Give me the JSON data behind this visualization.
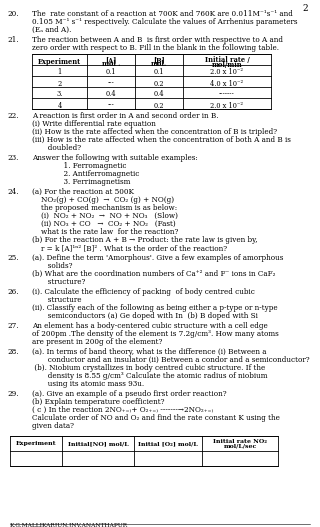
{
  "page_number": "2",
  "bg": "#ffffff",
  "fg": "#000000",
  "footer": "K.G.MALLIKARJUN,JNV,ANANTHAPUR",
  "q20_lines": [
    "The  rate constant of a reaction at 700K and 760K are 0.011M⁻¹s⁻¹ and",
    "0.105 M⁻¹ s⁻¹ respectively. Calculate the values of Arrhenius parameters",
    "(Eₐ and A)."
  ],
  "q21_lines": [
    "The reaction between A and B  is first order with respective to A and",
    "zero order with respect to B. Fill in the blank in the following table."
  ],
  "table21_headers": [
    "Experiment",
    "[A]\nmol .",
    "[B]\nmol.",
    "Initial rate /\nmol/min"
  ],
  "table21_rows": [
    [
      "1",
      "0.1",
      "0.1",
      "2.0 x 10⁻²"
    ],
    [
      "2",
      "---",
      "0.2",
      "4.0 x 10⁻²"
    ],
    [
      "3.",
      "0.4",
      "0.4",
      "-------"
    ],
    [
      "4",
      "---",
      "0.2",
      "2.0 x 10⁻²"
    ]
  ],
  "q22_lines": [
    "A reaction is first order in A and second order in B.",
    "(i) Write differential rate equation",
    "(ii) How is the rate affected when the concentration of B is tripled?",
    "(iii) How is the rate affected when the concentration of both A and B is",
    "       doubled?"
  ],
  "q23_lines": [
    "Answer the following with suitable examples:",
    "              1. Ferromagnetic",
    "              2. Antiferromagnetic",
    "              3. Ferrimagnetism"
  ],
  "q24_lines": [
    "(a) For the reaction at 500K",
    "    NO₂(g) + CO(g)  →  CO₂ (g) + NO(g)",
    "    the proposed mechanism is as below:",
    "    (i)  NO₂ + NO₂  →  NO + NO₃   (Slow)",
    "    (ii) NO₃ + CO   →  CO₂ + NO₂   (Fast)",
    "    what is the rate law  for the reaction?",
    "(b) For the reaction A + B → Product: the rate law is given by,",
    "    r = k [A]¹ⁿ² [B]² . What is the order of the reaction?"
  ],
  "q25_lines": [
    "(a). Define the term 'Amorphous'. Give a few examples of amorphous",
    "       solids?",
    "(b) What are the coordination numbers of Ca⁺² and F⁻ ions in CaF₂",
    "       structure?"
  ],
  "q26_lines": [
    "(i). Calculate the efficiency of packing  of body centred cubic",
    "       structure",
    "(ii). Classify each of the following as being either a p-type or n-type",
    "       semiconductors (a) Ge doped with In  (b) B doped with Si"
  ],
  "q27_lines": [
    "An element has a body-centered cubic structure with a cell edge",
    "of 200pm .The density of the element is 7.2g/cm³. How many atoms",
    "are present in 200g of the element?"
  ],
  "q28_lines": [
    "(a). In terms of band theory, what is the difference (i) Between a",
    "       conductor and an insulator (ii) Between a condor and a semiconductor?",
    " (b). Niobium crystallizes in body centred cubic structure. If the",
    "       density is 8.55 g/cm³ Calculate the atomic radius of niobium",
    "       using its atomic mass 93u."
  ],
  "q29_lines": [
    "(a). Give an example of a pseudo first order reaction?",
    "(b) Explain temperature coefficient?",
    "( c ) In the reaction 2NO₊₌₎+ O₂₊₌₎ -------→2NO₂₊₌₎",
    "Calculate order of NO and O₂ and find the rate constant K using the",
    "given data?"
  ],
  "table29_headers": [
    "Experiment",
    "Initial[NO] mol/L",
    "Initial [O₂] mol/L",
    "Initial rate NO₂\nmol/L/sec"
  ]
}
